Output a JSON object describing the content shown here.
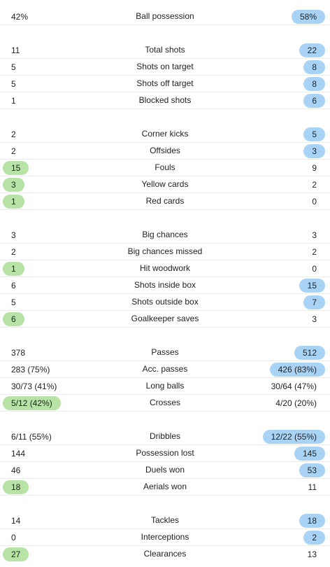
{
  "colors": {
    "home_highlight": "#b7e3a6",
    "away_highlight": "#a9d3f5",
    "divider": "#ebebeb"
  },
  "groups": [
    {
      "rows": [
        {
          "label": "Ball possession",
          "home": "42%",
          "away": "58%",
          "winner": "away"
        }
      ]
    },
    {
      "rows": [
        {
          "label": "Total shots",
          "home": "11",
          "away": "22",
          "winner": "away"
        },
        {
          "label": "Shots on target",
          "home": "5",
          "away": "8",
          "winner": "away"
        },
        {
          "label": "Shots off target",
          "home": "5",
          "away": "8",
          "winner": "away"
        },
        {
          "label": "Blocked shots",
          "home": "1",
          "away": "6",
          "winner": "away"
        }
      ]
    },
    {
      "rows": [
        {
          "label": "Corner kicks",
          "home": "2",
          "away": "5",
          "winner": "away"
        },
        {
          "label": "Offsides",
          "home": "2",
          "away": "3",
          "winner": "away"
        },
        {
          "label": "Fouls",
          "home": "15",
          "away": "9",
          "winner": "home"
        },
        {
          "label": "Yellow cards",
          "home": "3",
          "away": "2",
          "winner": "home"
        },
        {
          "label": "Red cards",
          "home": "1",
          "away": "0",
          "winner": "home"
        }
      ]
    },
    {
      "rows": [
        {
          "label": "Big chances",
          "home": "3",
          "away": "3",
          "winner": "none"
        },
        {
          "label": "Big chances missed",
          "home": "2",
          "away": "2",
          "winner": "none"
        },
        {
          "label": "Hit woodwork",
          "home": "1",
          "away": "0",
          "winner": "home"
        },
        {
          "label": "Shots inside box",
          "home": "6",
          "away": "15",
          "winner": "away"
        },
        {
          "label": "Shots outside box",
          "home": "5",
          "away": "7",
          "winner": "away"
        },
        {
          "label": "Goalkeeper saves",
          "home": "6",
          "away": "3",
          "winner": "home"
        }
      ]
    },
    {
      "rows": [
        {
          "label": "Passes",
          "home": "378",
          "away": "512",
          "winner": "away"
        },
        {
          "label": "Acc. passes",
          "home": "283 (75%)",
          "away": "426 (83%)",
          "winner": "away"
        },
        {
          "label": "Long balls",
          "home": "30/73 (41%)",
          "away": "30/64 (47%)",
          "winner": "none"
        },
        {
          "label": "Crosses",
          "home": "5/12 (42%)",
          "away": "4/20 (20%)",
          "winner": "home"
        }
      ]
    },
    {
      "rows": [
        {
          "label": "Dribbles",
          "home": "6/11 (55%)",
          "away": "12/22 (55%)",
          "winner": "away"
        },
        {
          "label": "Possession lost",
          "home": "144",
          "away": "145",
          "winner": "away"
        },
        {
          "label": "Duels won",
          "home": "46",
          "away": "53",
          "winner": "away"
        },
        {
          "label": "Aerials won",
          "home": "18",
          "away": "11",
          "winner": "home"
        }
      ]
    },
    {
      "rows": [
        {
          "label": "Tackles",
          "home": "14",
          "away": "18",
          "winner": "away"
        },
        {
          "label": "Interceptions",
          "home": "0",
          "away": "2",
          "winner": "away"
        },
        {
          "label": "Clearances",
          "home": "27",
          "away": "13",
          "winner": "home"
        }
      ]
    }
  ]
}
